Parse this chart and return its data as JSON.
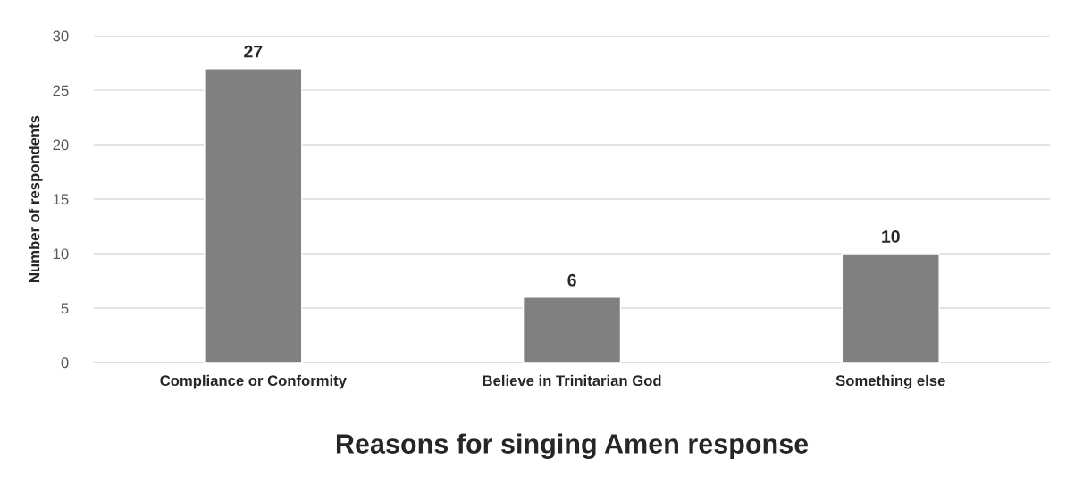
{
  "chart_data": {
    "type": "bar",
    "categories": [
      "Compliance or Conformity",
      "Believe in Trinitarian God",
      "Something else"
    ],
    "values": [
      27,
      6,
      10
    ],
    "color": "#808080",
    "ylabel": "Number of respondents",
    "xlabel": "Reasons for singing Amen response",
    "ylim": [
      0,
      30
    ],
    "yticks": [
      0,
      5,
      10,
      15,
      20,
      25,
      30
    ],
    "grid": "y",
    "data_labels": true
  }
}
